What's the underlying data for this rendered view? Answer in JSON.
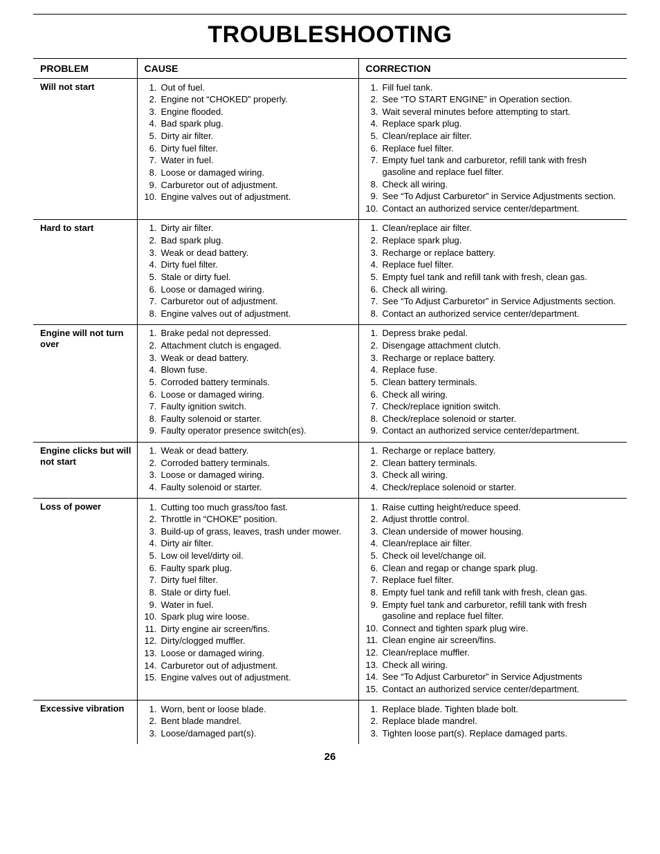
{
  "page": {
    "title": "TROUBLESHOOTING",
    "number": "26"
  },
  "headers": {
    "problem": "PROBLEM",
    "cause": "CAUSE",
    "correction": "CORRECTION"
  },
  "rows": [
    {
      "problem": "Will not start",
      "causes": [
        "Out of fuel.",
        "Engine not “CHOKED” properly.",
        "Engine flooded.",
        "Bad spark plug.",
        "Dirty air filter.",
        "Dirty fuel filter.",
        "Water in fuel.",
        "Loose or damaged wiring.",
        "Carburetor out of adjustment.",
        "Engine valves out of adjustment."
      ],
      "corrections": [
        "Fill fuel tank.",
        "See “TO START ENGINE” in Operation section.",
        "Wait several minutes before attempting to start.",
        "Replace spark plug.",
        "Clean/replace air filter.",
        "Replace fuel filter.",
        "Empty fuel tank and carburetor, refill tank with fresh gasoline and replace fuel filter.",
        "Check all wiring.",
        "See “To Adjust Carburetor” in Service Adjustments section.",
        "Contact an authorized service center/department."
      ]
    },
    {
      "problem": "Hard to start",
      "causes": [
        "Dirty air filter.",
        "Bad spark plug.",
        "Weak or dead battery.",
        "Dirty fuel filter.",
        "Stale or dirty fuel.",
        "Loose or damaged wiring.",
        "Carburetor out of adjustment.",
        "Engine valves out of adjustment."
      ],
      "corrections": [
        "Clean/replace air filter.",
        "Replace spark plug.",
        "Recharge or replace battery.",
        "Replace fuel filter.",
        "Empty fuel tank and refill tank with fresh, clean gas.",
        "Check all wiring.",
        "See “To Adjust Carburetor” in Service Adjustments section.",
        "Contact an authorized service center/department."
      ]
    },
    {
      "problem": "Engine will not turn over",
      "causes": [
        "Brake pedal not depressed.",
        "Attachment clutch is engaged.",
        "Weak or dead battery.",
        "Blown fuse.",
        "Corroded battery terminals.",
        "Loose or damaged wiring.",
        "Faulty ignition switch.",
        "Faulty solenoid or starter.",
        "Faulty operator presence switch(es)."
      ],
      "corrections": [
        "Depress brake pedal.",
        "Disengage attachment clutch.",
        "Recharge or replace battery.",
        "Replace fuse.",
        "Clean battery terminals.",
        "Check all wiring.",
        "Check/replace ignition switch.",
        "Check/replace solenoid or starter.",
        "Contact an authorized service center/department."
      ]
    },
    {
      "problem": "Engine clicks but will not start",
      "causes": [
        "Weak or dead battery.",
        "Corroded battery terminals.",
        "Loose or damaged wiring.",
        "Faulty solenoid or starter."
      ],
      "corrections": [
        "Recharge or replace battery.",
        "Clean battery terminals.",
        "Check all wiring.",
        "Check/replace solenoid or starter."
      ]
    },
    {
      "problem": "Loss of power",
      "causes": [
        "Cutting too much grass/too fast.",
        "Throttle in “CHOKE” position.",
        "Build-up of grass, leaves, trash under mower.",
        "Dirty air filter.",
        "Low oil level/dirty oil.",
        "Faulty spark plug.",
        "Dirty fuel filter.",
        "Stale or dirty fuel.",
        "Water in fuel.",
        "Spark plug wire loose.",
        "Dirty engine air screen/fins.",
        "Dirty/clogged muffler.",
        "Loose or damaged wiring.",
        "Carburetor out of adjustment.",
        "Engine valves out of adjustment."
      ],
      "corrections": [
        "Raise cutting height/reduce speed.",
        "Adjust throttle control.",
        "Clean underside of mower housing.",
        "Clean/replace air filter.",
        "Check oil level/change oil.",
        "Clean and regap or change spark plug.",
        "Replace fuel filter.",
        "Empty fuel tank and refill tank with fresh, clean gas.",
        "Empty fuel tank and carburetor, refill tank with fresh gasoline and replace fuel filter.",
        "Connect and tighten spark plug wire.",
        "Clean engine air screen/fins.",
        "Clean/replace muffler.",
        "Check all wiring.",
        "See “To Adjust Carburetor” in Service Adjustments",
        "Contact an authorized service center/department."
      ]
    },
    {
      "problem": "Excessive vibration",
      "causes": [
        "Worn, bent or loose blade.",
        "Bent blade mandrel.",
        "Loose/damaged part(s)."
      ],
      "corrections": [
        "Replace blade. Tighten blade bolt.",
        "Replace blade mandrel.",
        "Tighten loose part(s).  Replace damaged parts."
      ]
    }
  ]
}
